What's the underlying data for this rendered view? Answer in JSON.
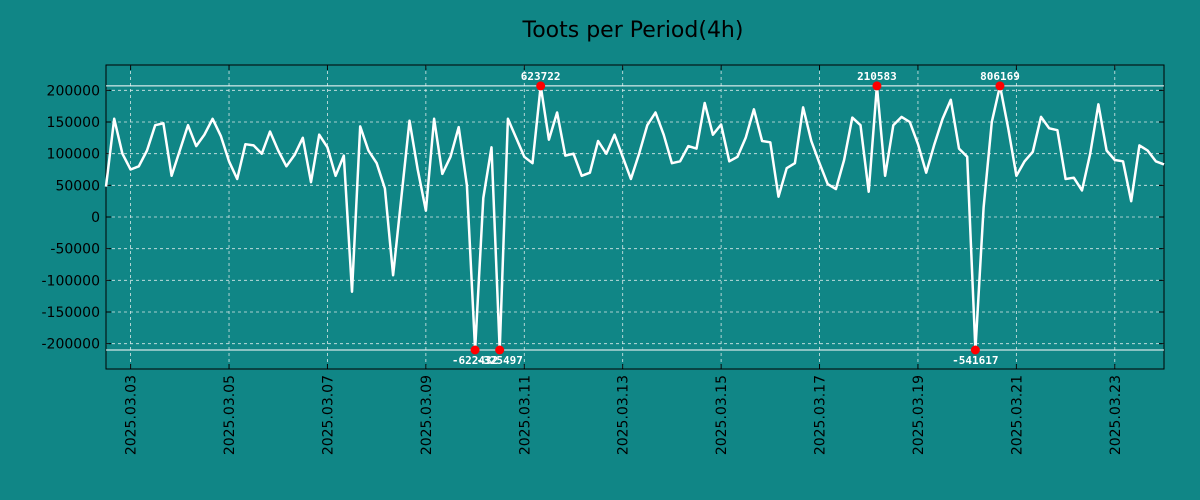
{
  "chart_data": {
    "type": "line",
    "title": "Toots per Period(4h)",
    "xlabel": "",
    "ylabel": "",
    "colors": {
      "background": "#108686",
      "line": "#ffffff",
      "marker": "#ff0000",
      "grid": "#d8e8e8"
    },
    "ylim": [
      -240000,
      240000
    ],
    "xlim": [
      0,
      129
    ],
    "y_ticks": [
      200000,
      150000,
      100000,
      50000,
      0,
      -50000,
      -100000,
      -150000,
      -200000
    ],
    "y_tick_labels": [
      "200000",
      "150000",
      "100000",
      "50000",
      "0",
      "-50000",
      "-100000",
      "-150000",
      "-200000"
    ],
    "x_ticks": [
      3,
      15,
      27,
      39,
      51,
      63,
      75,
      87,
      99,
      111,
      123
    ],
    "x_tick_labels": [
      "2025.03.03",
      "2025.03.05",
      "2025.03.07",
      "2025.03.09",
      "2025.03.11",
      "2025.03.13",
      "2025.03.15",
      "2025.03.17",
      "2025.03.19",
      "2025.03.21",
      "2025.03.23"
    ],
    "clip_lines": {
      "upper": 207000,
      "lower": -210000
    },
    "values": [
      48000,
      155000,
      100000,
      75000,
      80000,
      105000,
      145000,
      148000,
      65000,
      105000,
      145000,
      112000,
      130000,
      155000,
      128000,
      88000,
      60000,
      115000,
      113000,
      100000,
      135000,
      105000,
      80000,
      98000,
      125000,
      55000,
      130000,
      110000,
      65000,
      97000,
      -118000,
      143000,
      105000,
      85000,
      45000,
      -92000,
      30000,
      152000,
      75000,
      10000,
      155000,
      68000,
      95000,
      142000,
      50000,
      -210000,
      30000,
      110000,
      -210000,
      155000,
      125000,
      95000,
      85000,
      207000,
      122000,
      165000,
      97000,
      100000,
      65000,
      70000,
      120000,
      100000,
      130000,
      95000,
      60000,
      100000,
      145000,
      165000,
      130000,
      85000,
      88000,
      112000,
      108000,
      180000,
      130000,
      146000,
      88000,
      95000,
      125000,
      170000,
      120000,
      118000,
      32000,
      77000,
      85000,
      173000,
      120000,
      85000,
      52000,
      44000,
      90000,
      157000,
      145000,
      40000,
      207000,
      65000,
      145000,
      158000,
      150000,
      115000,
      70000,
      115000,
      155000,
      185000,
      108000,
      95000,
      -210000,
      15000,
      150000,
      207000,
      140000,
      65000,
      88000,
      103000,
      158000,
      140000,
      137000,
      60000,
      62000,
      42000,
      100000,
      178000,
      105000,
      90000,
      88000,
      25000,
      113000,
      105000,
      88000,
      83000
    ],
    "annotations": [
      {
        "index": 45,
        "position": "below",
        "text": "-622432"
      },
      {
        "index": 48,
        "position": "below",
        "text": "-325497"
      },
      {
        "index": 53,
        "position": "above",
        "text": "623722"
      },
      {
        "index": 94,
        "position": "above",
        "text": "210583"
      },
      {
        "index": 106,
        "position": "below",
        "text": "-541617"
      },
      {
        "index": 109,
        "position": "above",
        "text": "806169"
      }
    ]
  }
}
